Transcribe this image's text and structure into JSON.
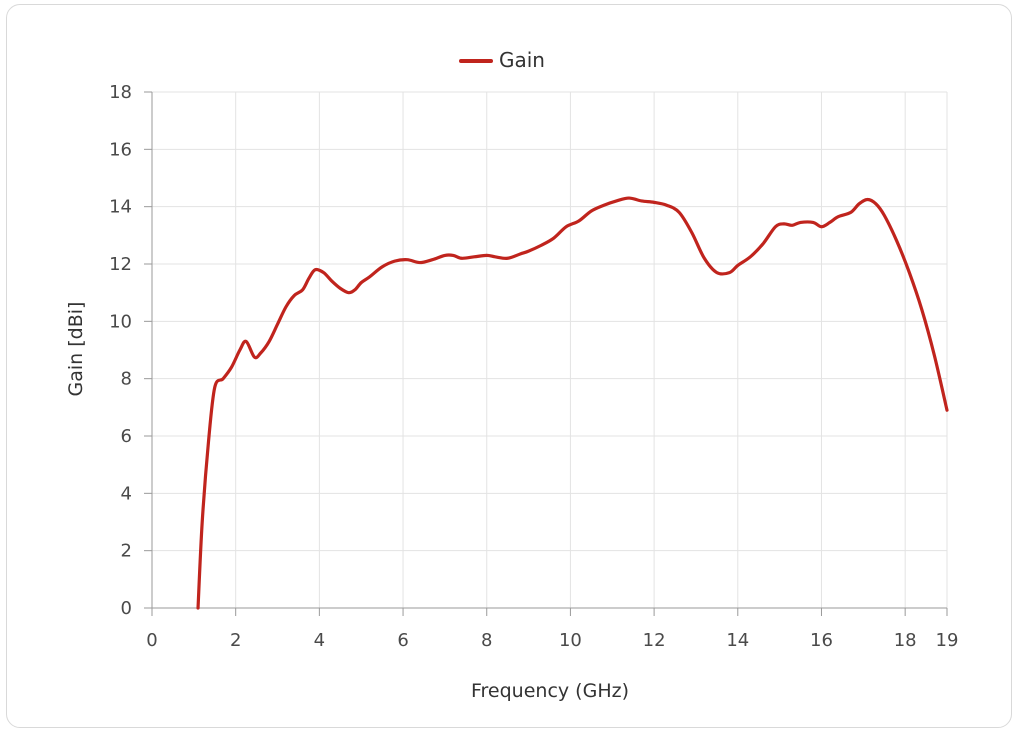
{
  "chart_data": {
    "type": "line",
    "xlabel": "Frequency (GHz)",
    "ylabel": "Gain [dBi]",
    "xlim": [
      0,
      19
    ],
    "ylim": [
      0,
      18
    ],
    "x_ticks": [
      0,
      2,
      4,
      6,
      8,
      10,
      12,
      14,
      16,
      18,
      19
    ],
    "y_ticks": [
      0,
      2,
      4,
      6,
      8,
      10,
      12,
      14,
      16,
      18
    ],
    "grid": true,
    "legend_position": "top-center",
    "series": [
      {
        "name": "Gain",
        "color": "#c0241d",
        "x": [
          1.1,
          1.2,
          1.35,
          1.5,
          1.7,
          1.9,
          2.1,
          2.25,
          2.45,
          2.6,
          2.8,
          3.0,
          3.2,
          3.4,
          3.6,
          3.75,
          3.9,
          4.1,
          4.3,
          4.5,
          4.7,
          4.85,
          5.0,
          5.2,
          5.5,
          5.8,
          6.1,
          6.4,
          6.7,
          7.0,
          7.2,
          7.4,
          7.7,
          8.0,
          8.2,
          8.5,
          8.8,
          9.0,
          9.3,
          9.6,
          9.9,
          10.2,
          10.5,
          10.8,
          11.1,
          11.4,
          11.7,
          12.0,
          12.3,
          12.6,
          12.9,
          13.2,
          13.5,
          13.8,
          14.0,
          14.3,
          14.6,
          14.9,
          15.1,
          15.3,
          15.5,
          15.8,
          16.0,
          16.2,
          16.4,
          16.7,
          16.9,
          17.1,
          17.3,
          17.5,
          17.8,
          18.1,
          18.4,
          18.7,
          19.0
        ],
        "y": [
          0,
          3.0,
          5.8,
          7.7,
          8.0,
          8.4,
          9.0,
          9.3,
          8.75,
          8.9,
          9.3,
          9.9,
          10.5,
          10.9,
          11.1,
          11.5,
          11.8,
          11.7,
          11.4,
          11.15,
          11.0,
          11.1,
          11.35,
          11.55,
          11.9,
          12.1,
          12.15,
          12.05,
          12.15,
          12.3,
          12.3,
          12.2,
          12.25,
          12.3,
          12.25,
          12.2,
          12.35,
          12.45,
          12.65,
          12.9,
          13.3,
          13.5,
          13.85,
          14.05,
          14.2,
          14.3,
          14.2,
          14.15,
          14.05,
          13.8,
          13.1,
          12.2,
          11.7,
          11.7,
          11.95,
          12.25,
          12.7,
          13.3,
          13.4,
          13.35,
          13.45,
          13.45,
          13.3,
          13.45,
          13.65,
          13.8,
          14.1,
          14.25,
          14.1,
          13.7,
          12.8,
          11.7,
          10.4,
          8.8,
          6.9
        ]
      }
    ]
  }
}
